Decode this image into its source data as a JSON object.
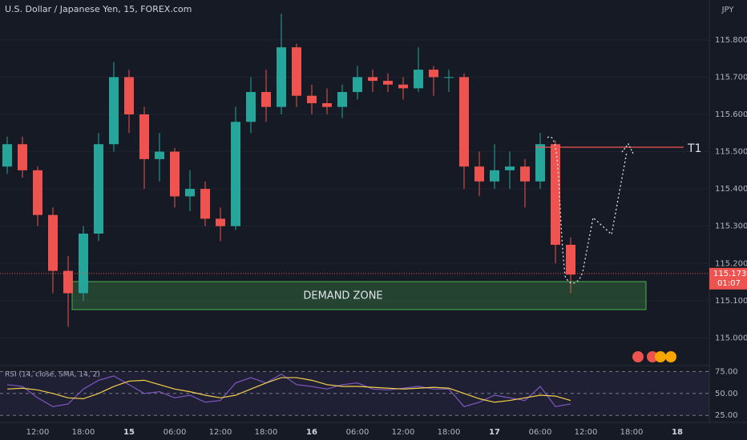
{
  "chart_data": {
    "type": "candlestick",
    "title": "U.S. Dollar / Japanese Yen, 15, FOREX.com",
    "currency": "JPY",
    "categories": [
      null,
      null,
      "12:00",
      null,
      null,
      "18:00",
      null,
      null,
      "15",
      null,
      null,
      "06:00",
      null,
      null,
      "12:00",
      null,
      null,
      "18:00",
      null,
      null,
      "16",
      null,
      null,
      "06:00",
      null,
      null,
      "12:00",
      null,
      null,
      "18:00",
      null,
      null,
      "17",
      null,
      null,
      "06:00",
      null,
      null,
      "12:00",
      null,
      null,
      "18:00",
      null,
      null,
      "18"
    ],
    "open": [
      115.46,
      115.52,
      115.45,
      115.33,
      115.18,
      115.12,
      115.28,
      115.52,
      115.7,
      115.6,
      115.48,
      115.5,
      115.38,
      115.4,
      115.32,
      115.3,
      115.58,
      115.66,
      115.62,
      115.78,
      115.65,
      115.63,
      115.62,
      115.66,
      115.7,
      115.69,
      115.68,
      115.67,
      115.72,
      115.7,
      115.7,
      115.46,
      115.42,
      115.45,
      115.46,
      115.42,
      115.52,
      115.25,
      null,
      null,
      null,
      null,
      null,
      null,
      null
    ],
    "high": [
      115.54,
      115.54,
      115.46,
      115.35,
      115.22,
      115.3,
      115.55,
      115.74,
      115.72,
      115.62,
      115.55,
      115.51,
      115.45,
      115.42,
      115.35,
      115.62,
      115.7,
      115.72,
      115.87,
      115.79,
      115.68,
      115.67,
      115.68,
      115.73,
      115.72,
      115.71,
      115.7,
      115.78,
      115.73,
      115.72,
      115.71,
      115.5,
      115.52,
      115.5,
      115.48,
      115.55,
      115.53,
      115.27,
      null,
      null,
      null,
      null,
      null,
      null,
      null
    ],
    "low": [
      115.44,
      115.43,
      115.3,
      115.12,
      115.03,
      115.1,
      115.26,
      115.5,
      115.55,
      115.4,
      115.42,
      115.35,
      115.34,
      115.3,
      115.26,
      115.29,
      115.55,
      115.58,
      115.6,
      115.62,
      115.6,
      115.6,
      115.59,
      115.64,
      115.66,
      115.66,
      115.64,
      115.66,
      115.65,
      115.66,
      115.4,
      115.38,
      115.4,
      115.4,
      115.35,
      115.4,
      115.2,
      115.12,
      null,
      null,
      null,
      null,
      null,
      null,
      null
    ],
    "close": [
      115.52,
      115.45,
      115.33,
      115.18,
      115.12,
      115.28,
      115.52,
      115.7,
      115.6,
      115.48,
      115.5,
      115.38,
      115.4,
      115.32,
      115.3,
      115.58,
      115.66,
      115.62,
      115.78,
      115.65,
      115.63,
      115.62,
      115.66,
      115.7,
      115.69,
      115.68,
      115.67,
      115.72,
      115.7,
      115.7,
      115.46,
      115.42,
      115.45,
      115.46,
      115.42,
      115.52,
      115.25,
      115.17,
      null,
      null,
      null,
      null,
      null,
      null,
      null
    ],
    "up_color": "#26a69a",
    "down_color": "#ef5350",
    "ylim": [
      114.93,
      115.907
    ],
    "yticks": [
      {
        "value": 115.0,
        "label": "115.000"
      },
      {
        "value": 115.1,
        "label": "115.100"
      },
      {
        "value": 115.2,
        "label": "115.200"
      },
      {
        "value": 115.3,
        "label": "115.300"
      },
      {
        "value": 115.4,
        "label": "115.400"
      },
      {
        "value": 115.5,
        "label": "115.500"
      },
      {
        "value": 115.6,
        "label": "115.600"
      },
      {
        "value": 115.7,
        "label": "115.700"
      },
      {
        "value": 115.8,
        "label": "115.800"
      }
    ],
    "grid": true,
    "last_price": 115.173,
    "countdown": "01:07",
    "annotations": {
      "target": "T1",
      "zone": "DEMAND ZONE"
    },
    "rsi": {
      "title": "RSI (14, close, SMA, 14, 2)",
      "ylim": [
        17,
        79
      ],
      "yticks": [
        {
          "value": 25,
          "label": "25.00"
        },
        {
          "value": 50,
          "label": "50.00"
        },
        {
          "value": 75,
          "label": "75.00"
        }
      ],
      "series": [
        {
          "color": "#7e57c2",
          "values": [
            60,
            58,
            45,
            35,
            38,
            55,
            65,
            70,
            60,
            50,
            52,
            45,
            48,
            40,
            42,
            62,
            68,
            62,
            72,
            60,
            58,
            55,
            60,
            62,
            55,
            54,
            56,
            58,
            55,
            55,
            35,
            40,
            48,
            45,
            42,
            58,
            35,
            38,
            null,
            null,
            null,
            null,
            null,
            null,
            null
          ]
        },
        {
          "color": "#f5d04a",
          "values": [
            55,
            56,
            54,
            50,
            45,
            44,
            50,
            58,
            64,
            65,
            60,
            55,
            52,
            48,
            45,
            48,
            55,
            62,
            68,
            68,
            65,
            60,
            58,
            58,
            57,
            56,
            55,
            56,
            57,
            56,
            50,
            44,
            40,
            42,
            45,
            48,
            47,
            42,
            null,
            null,
            null,
            null,
            null,
            null,
            null
          ]
        }
      ]
    }
  }
}
